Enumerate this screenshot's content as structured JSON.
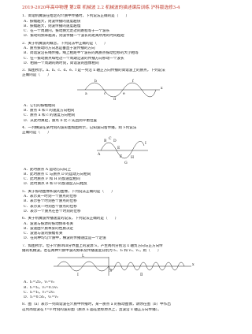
{
  "title": "2019-2020年高中物理 第2章 机械波 2.2 机械波的描述课后训练 沪科版选修3-4",
  "questions": [
    {
      "stem": [
        "1．简谐机械波在给定的介质中传播时，下列说法正确的是（　　）"
      ],
      "options": [
        "A．振幅越大，则波传播的速度越快",
        "B．振幅越大，则波传播的速度越慢",
        "C．在一个周期内，振动质元走过的路程等于一个波长",
        "D．振动的频率越高，则波传播一个波长的距离所用的时间越短"
      ]
    },
    {
      "stem": [
        "2．关于机械波的概念，下列说法中正确的是（　　）"
      ],
      "options": [
        "A．质点振动的方向总是垂直于波传播的方向",
        "B．简谐波沿长绳传播，绳上相距半个波长的两质点振动位移的大小相等",
        "C．任一振动质点每经过一个周期沿波的传播方向移动一个波长",
        "D．相隔一个周期的两时刻，简谐波的图像相同"
      ]
    },
    {
      "stem": [
        "3．如图所示，a、b、c、d、e、f 是一列沿 x 轴正方向传播的简谐波上的质点，下列说法",
        "正确的是（　　）"
      ],
      "options": [
        "A．它们的振幅相同",
        "B．质点 d 和 f 的速度方向相同",
        "C．质点 a 和 c 的速度方向相同",
        "D．从此时算起，质点 b 比 c 先回到平衡位置"
      ]
    },
    {
      "stem": [
        "4．一列横波在某时刻的波形图如图所示，已知波向右传播，则下列说法",
        "正确的是（　　）"
      ],
      "options": [
        "A．此时质点 A 运动方向向上",
        "B．此时质点 C 与质点 D 的运动方向相同",
        "C．此时质点 F 和 H 的加速度相同",
        "D．此时质点 B 和 D 的加速度方向相反"
      ]
    },
    {
      "stem": [
        "5．关于振动图像和波的图像，下列说法正确的是（　　）"
      ],
      "options": [
        "A．表示某一时刻一个质点的位移",
        "B．表示各个时刻各个质点的位移",
        "C．表示某一时刻各个质点的位移",
        "D．表示一个质点在各个时刻的位移"
      ]
    },
    {
      "stem": [
        "6．关于机械波传播速度的说法，下列说法正确的是（　　）"
      ],
      "options": [
        "A．波速与振源的振动频率有关",
        "B．波速由介质本身的性质决定",
        "C．波速与波的振幅有关",
        "D．在同种均匀介质中，横波的传播速度是一个定值"
      ]
    },
    {
      "stem": [
        "7．如图所示，位于介质Ⅰ和Ⅱ分界面上的波源 S，产生两列分别沿 x 轴负方向与正方向传",
        "播的机械波。若在两种介质中波的频率及传播速度分别为 f₁、f₂ 和 v₁、v₂，则（　　）"
      ],
      "options": [
        "A．f₁=2f₂，v₁=v₂",
        "B．f₁=f₂，v₁=0.5v₂",
        "C．f₁=f₂，v₁=2v₂",
        "D．f₁=0.5f₂，v₁=v₂"
      ]
    },
    {
      "stem": [
        "8．图（a）表示一列简谐波在介质中传播时，某一质点 a 的振动图像，请你在图（b）中作出",
        "这列简谐波在 t=0 时刻的波形图（质点 a 画在坐标原点上，且波沿 x 轴正方向传播）。"
      ],
      "options": []
    }
  ],
  "figures": [
    {
      "labels": [
        "a",
        "b",
        "c",
        "d",
        "e",
        "f",
        "x"
      ]
    },
    {
      "labels": [
        "A",
        "B",
        "C",
        "D",
        "E",
        "F",
        "G",
        "H",
        "I"
      ]
    },
    {
      "labels": [
        "Ⅰ",
        "Ⅱ",
        "S",
        "L",
        "x"
      ]
    }
  ]
}
